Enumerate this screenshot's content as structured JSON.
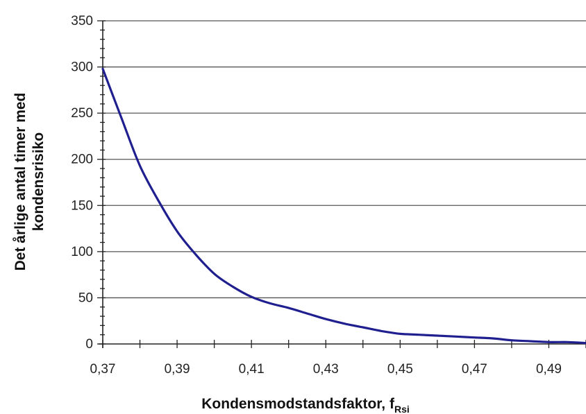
{
  "chart_data": {
    "type": "line",
    "title": "",
    "xlabel": "Kondensmodstandsfaktor, f",
    "xlabel_subscript": "Rsi",
    "ylabel_line1": "Det årlige antal timer med",
    "ylabel_line2": "kondensrisiko",
    "xlim": [
      0.37,
      0.5
    ],
    "ylim": [
      0,
      350
    ],
    "x_tick_values": [
      0.37,
      0.39,
      0.41,
      0.43,
      0.45,
      0.47,
      0.49
    ],
    "x_tick_labels": [
      "0,37",
      "0,39",
      "0,41",
      "0,43",
      "0,45",
      "0,47",
      "0,49"
    ],
    "y_tick_values": [
      0,
      50,
      100,
      150,
      200,
      250,
      300,
      350
    ],
    "y_tick_labels": [
      "0",
      "50",
      "100",
      "150",
      "200",
      "250",
      "300",
      "350"
    ],
    "grid": "horizontal",
    "series": [
      {
        "color": "#1f1f8f",
        "points": [
          [
            0.37,
            298
          ],
          [
            0.375,
            245
          ],
          [
            0.38,
            193
          ],
          [
            0.385,
            155
          ],
          [
            0.39,
            122
          ],
          [
            0.395,
            97
          ],
          [
            0.4,
            76
          ],
          [
            0.405,
            62
          ],
          [
            0.41,
            51
          ],
          [
            0.415,
            44
          ],
          [
            0.42,
            39
          ],
          [
            0.425,
            33
          ],
          [
            0.43,
            27
          ],
          [
            0.435,
            22
          ],
          [
            0.44,
            18
          ],
          [
            0.445,
            14
          ],
          [
            0.45,
            11
          ],
          [
            0.455,
            10
          ],
          [
            0.46,
            9
          ],
          [
            0.465,
            8
          ],
          [
            0.47,
            7
          ],
          [
            0.475,
            6
          ],
          [
            0.48,
            4
          ],
          [
            0.485,
            3
          ],
          [
            0.49,
            2
          ],
          [
            0.495,
            2
          ],
          [
            0.5,
            1
          ]
        ]
      }
    ]
  }
}
